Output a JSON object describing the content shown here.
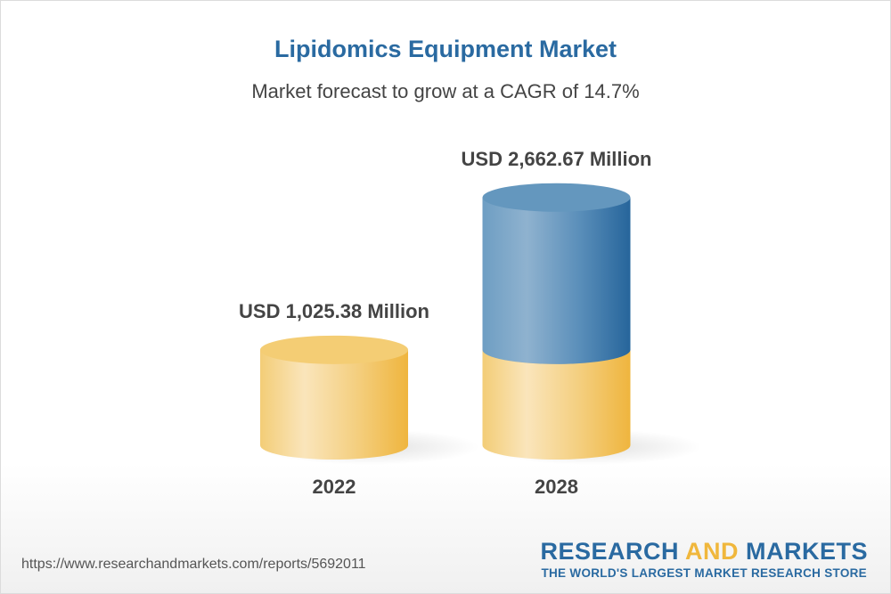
{
  "title": "Lipidomics Equipment Market",
  "subtitle": "Market forecast to grow at a CAGR of 14.7%",
  "chart_data": {
    "type": "bar",
    "style": "3d-cylinder",
    "title": "Lipidomics Equipment Market",
    "subtitle": "Market forecast to grow at a CAGR of 14.7%",
    "categories": [
      "2022",
      "2028"
    ],
    "values": [
      1025.38,
      2662.67
    ],
    "data_labels": [
      "USD 1,025.38 Million",
      "USD 2,662.67 Million"
    ],
    "unit": "USD Million",
    "grid": false,
    "colors": {
      "base": "#f2c25a",
      "growth": "#2e6da0"
    }
  },
  "footer": {
    "url": "https://www.researchandmarkets.com/reports/5692011",
    "logo_word1": "RESEARCH",
    "logo_word2": "AND",
    "logo_word3": "MARKETS",
    "tagline": "THE WORLD'S LARGEST MARKET RESEARCH STORE"
  }
}
